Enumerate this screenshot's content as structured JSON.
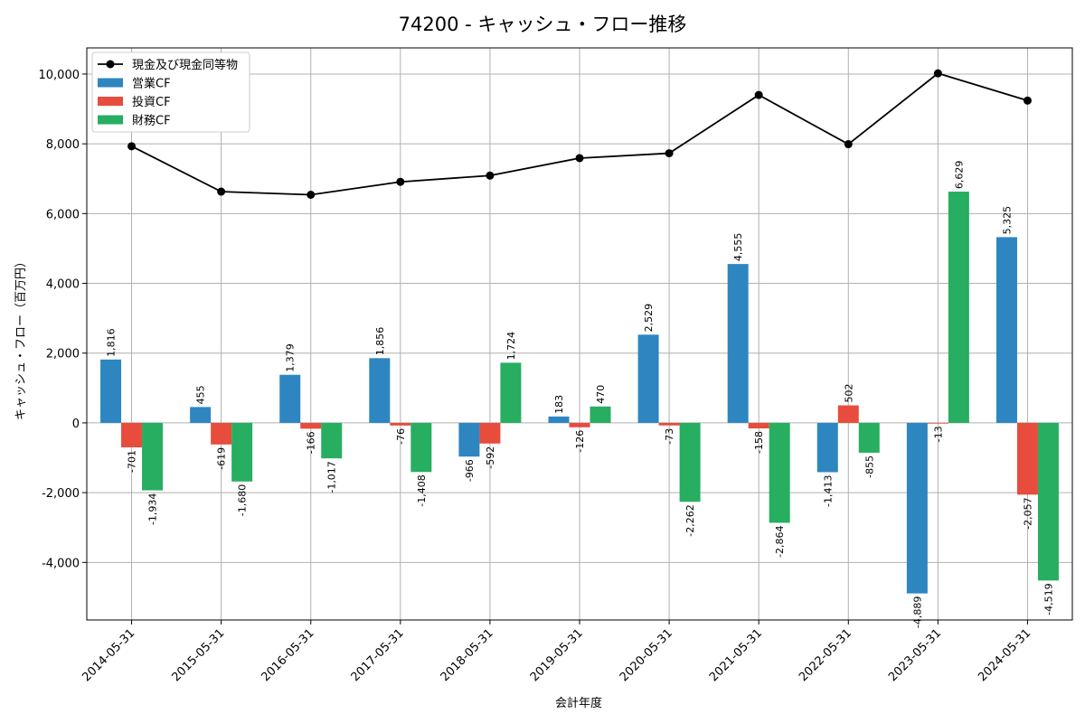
{
  "chart_data": {
    "type": "bar",
    "title": "74200 - キャッシュ・フロー推移",
    "xlabel": "会計年度",
    "ylabel": "キャッシュ・フロー（百万円）",
    "categories": [
      "2014-05-31",
      "2015-05-31",
      "2016-05-31",
      "2017-05-31",
      "2018-05-31",
      "2019-05-31",
      "2020-05-31",
      "2021-05-31",
      "2022-05-31",
      "2023-05-31",
      "2024-05-31"
    ],
    "series": [
      {
        "name": "営業CF",
        "kind": "bar",
        "color": "#2e86c1",
        "values": [
          1816,
          455,
          1379,
          1856,
          -966,
          183,
          2529,
          4555,
          -1413,
          -4889,
          5325
        ]
      },
      {
        "name": "投資CF",
        "kind": "bar",
        "color": "#e74c3c",
        "values": [
          -701,
          -619,
          -166,
          -76,
          -592,
          -126,
          -73,
          -158,
          502,
          -13,
          -2057
        ]
      },
      {
        "name": "財務CF",
        "kind": "bar",
        "color": "#27ae60",
        "values": [
          -1934,
          -1680,
          -1017,
          -1408,
          1724,
          470,
          -2262,
          -2864,
          -855,
          6629,
          -4519
        ]
      },
      {
        "name": "現金及び現金同等物",
        "kind": "line",
        "color": "#000000",
        "values": [
          7930,
          6630,
          6540,
          6910,
          7090,
          7590,
          7730,
          9400,
          7990,
          10020,
          9240
        ]
      }
    ],
    "data_labels": {
      "営業CF": [
        "1,816",
        "455",
        "1,379",
        "1,856",
        "-966",
        "183",
        "2,529",
        "4,555",
        "-1,413",
        "-4,889",
        "5,325"
      ],
      "投資CF": [
        "-701",
        "-619",
        "-166",
        "-76",
        "-592",
        "-126",
        "-73",
        "-158",
        "502",
        "-13",
        "-2,057"
      ],
      "財務CF": [
        "-1,934",
        "-1,680",
        "-1,017",
        "-1,408",
        "1,724",
        "470",
        "-2,262",
        "-2,864",
        "-855",
        "6,629",
        "-4,519"
      ]
    },
    "yticks": [
      -4000,
      -2000,
      0,
      2000,
      4000,
      6000,
      8000,
      10000
    ],
    "ytick_labels": [
      "-4,000",
      "-2,000",
      "0",
      "2,000",
      "4,000",
      "6,000",
      "8,000",
      "10,000"
    ],
    "ylim": [
      -5650,
      10750
    ],
    "grid": true,
    "legend_position": "top-left"
  }
}
